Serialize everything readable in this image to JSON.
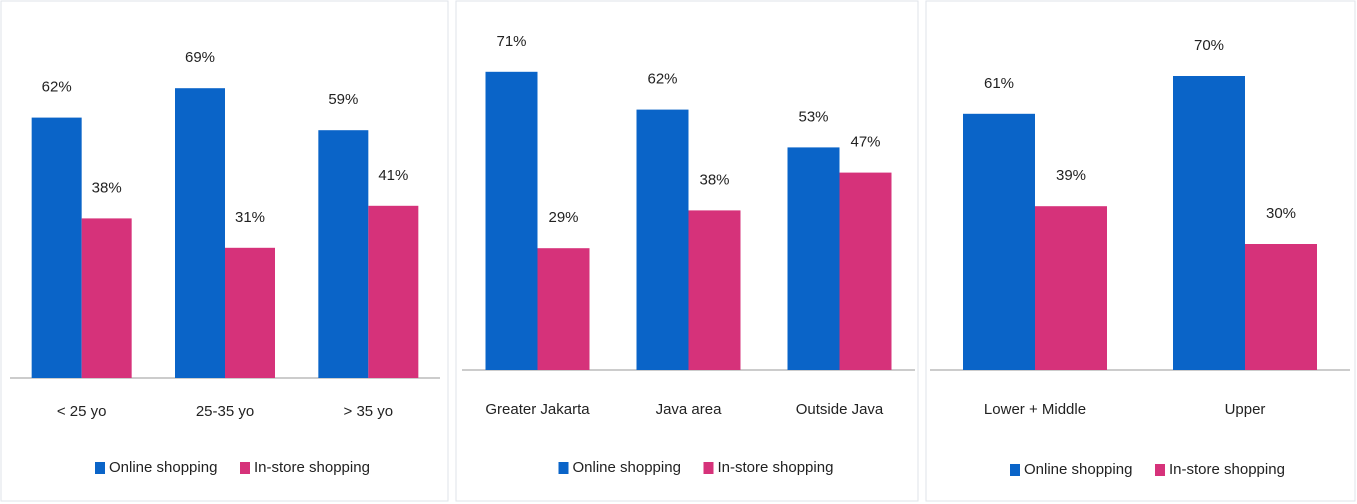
{
  "chart_data": [
    {
      "type": "bar",
      "categories": [
        "< 25 yo",
        "25-35 yo",
        "> 35 yo"
      ],
      "series": [
        {
          "name": "Online shopping",
          "color": "#0a64c8",
          "values": [
            62,
            69,
            59
          ],
          "value_labels": [
            "62%",
            "69%",
            "59%"
          ]
        },
        {
          "name": "In-store shopping",
          "color": "#d6327a",
          "values": [
            38,
            31,
            41
          ],
          "value_labels": [
            "38%",
            "31%",
            "41%"
          ]
        }
      ]
    },
    {
      "type": "bar",
      "categories": [
        "Greater Jakarta",
        "Java area",
        "Outside Java"
      ],
      "series": [
        {
          "name": "Online shopping",
          "color": "#0a64c8",
          "values": [
            71,
            62,
            53
          ],
          "value_labels": [
            "71%",
            "62%",
            "53%"
          ]
        },
        {
          "name": "In-store shopping",
          "color": "#d6327a",
          "values": [
            29,
            38,
            47
          ],
          "value_labels": [
            "29%",
            "38%",
            "47%"
          ]
        }
      ]
    },
    {
      "type": "bar",
      "categories": [
        "Lower + Middle",
        "Upper"
      ],
      "series": [
        {
          "name": "Online shopping",
          "color": "#0a64c8",
          "values": [
            61,
            70
          ],
          "value_labels": [
            "61%",
            "70%"
          ]
        },
        {
          "name": "In-store shopping",
          "color": "#d6327a",
          "values": [
            39,
            30
          ],
          "value_labels": [
            "39%",
            "30%"
          ]
        }
      ]
    }
  ]
}
